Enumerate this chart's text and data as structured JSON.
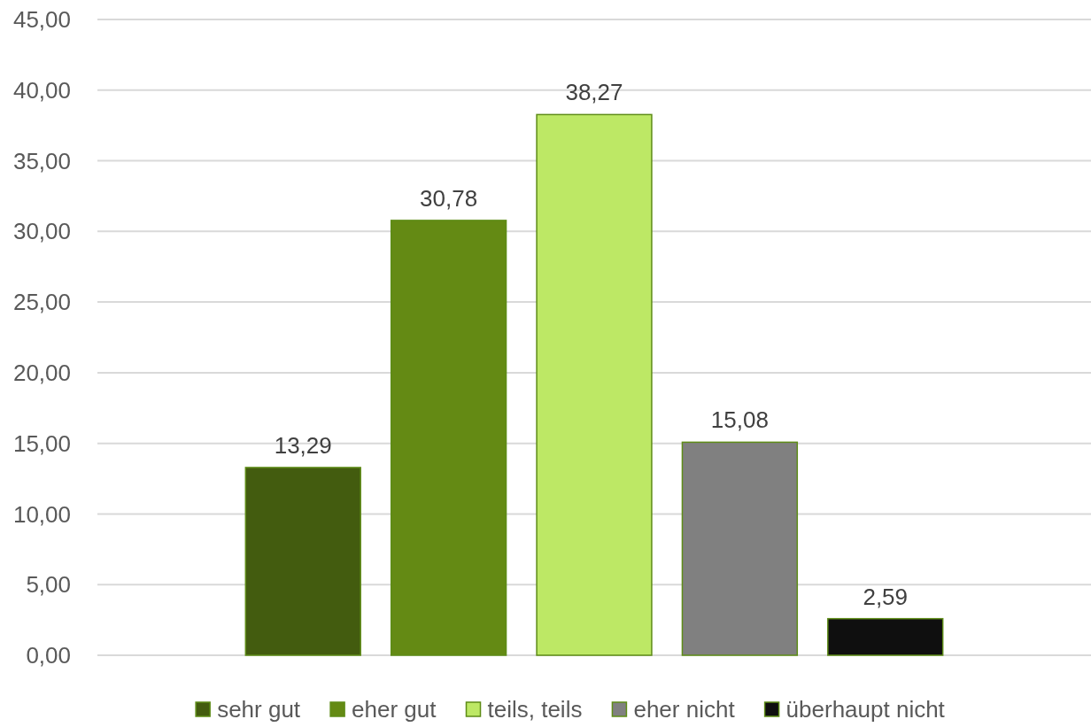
{
  "chart_data": {
    "type": "bar",
    "categories": [
      null
    ],
    "series": [
      {
        "name": "sehr gut",
        "color": "#435c0f",
        "values": [
          13.29
        ],
        "value_labels": [
          "13,29"
        ]
      },
      {
        "name": "eher gut",
        "color": "#648a14",
        "values": [
          30.78
        ],
        "value_labels": [
          "30,78"
        ]
      },
      {
        "name": "teils, teils",
        "color": "#bde865",
        "values": [
          38.27
        ],
        "value_labels": [
          "38,27"
        ]
      },
      {
        "name": "eher nicht",
        "color": "#808080",
        "values": [
          15.08
        ],
        "value_labels": [
          "15,08"
        ]
      },
      {
        "name": "überhaupt nicht",
        "color": "#0f0f0f",
        "values": [
          2.59
        ],
        "value_labels": [
          "2,59"
        ]
      }
    ],
    "ylim": [
      0,
      45
    ],
    "yticks": [
      {
        "value": 0,
        "label": "0,00"
      },
      {
        "value": 5,
        "label": "5,00"
      },
      {
        "value": 10,
        "label": "10,00"
      },
      {
        "value": 15,
        "label": "15,00"
      },
      {
        "value": 20,
        "label": "20,00"
      },
      {
        "value": 25,
        "label": "25,00"
      },
      {
        "value": 30,
        "label": "30,00"
      },
      {
        "value": 35,
        "label": "35,00"
      },
      {
        "value": 40,
        "label": "40,00"
      },
      {
        "value": 45,
        "label": "45,00"
      }
    ],
    "grid": "y",
    "legend": "bottom"
  }
}
